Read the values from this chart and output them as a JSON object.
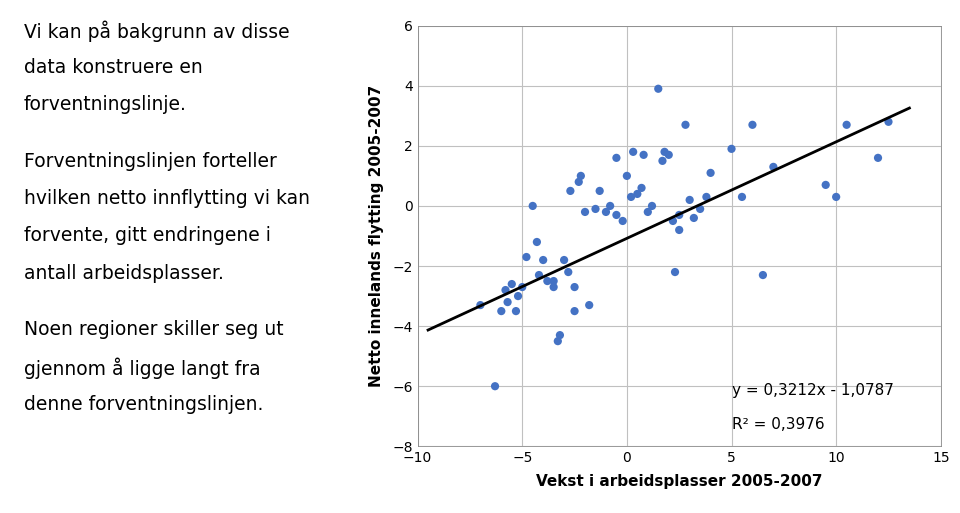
{
  "scatter_x": [
    -7.0,
    -6.3,
    -6.0,
    -5.8,
    -5.7,
    -5.5,
    -5.3,
    -5.2,
    -5.0,
    -4.8,
    -4.5,
    -4.3,
    -4.2,
    -4.0,
    -3.8,
    -3.5,
    -3.5,
    -3.3,
    -3.2,
    -3.0,
    -2.8,
    -2.7,
    -2.5,
    -2.5,
    -2.3,
    -2.2,
    -2.0,
    -1.8,
    -1.5,
    -1.3,
    -1.0,
    -0.8,
    -0.5,
    -0.5,
    -0.2,
    0.0,
    0.2,
    0.3,
    0.5,
    0.7,
    0.8,
    1.0,
    1.2,
    1.5,
    1.7,
    1.8,
    2.0,
    2.2,
    2.3,
    2.5,
    2.5,
    2.8,
    3.0,
    3.2,
    3.5,
    3.8,
    4.0,
    5.0,
    5.5,
    6.0,
    6.5,
    7.0,
    9.5,
    10.0,
    10.5,
    12.0,
    12.5
  ],
  "scatter_y": [
    -3.3,
    -6.0,
    -3.5,
    -2.8,
    -3.2,
    -2.6,
    -3.5,
    -3.0,
    -2.7,
    -1.7,
    0.0,
    -1.2,
    -2.3,
    -1.8,
    -2.5,
    -2.7,
    -2.5,
    -4.5,
    -4.3,
    -1.8,
    -2.2,
    0.5,
    -2.7,
    -3.5,
    0.8,
    1.0,
    -0.2,
    -3.3,
    -0.1,
    0.5,
    -0.2,
    0.0,
    -0.3,
    1.6,
    -0.5,
    1.0,
    0.3,
    1.8,
    0.4,
    0.6,
    1.7,
    -0.2,
    0.0,
    3.9,
    1.5,
    1.8,
    1.7,
    -0.5,
    -2.2,
    -0.8,
    -0.3,
    2.7,
    0.2,
    -0.4,
    -0.1,
    0.3,
    1.1,
    1.9,
    0.3,
    2.7,
    -2.3,
    1.3,
    0.7,
    0.3,
    2.7,
    1.6,
    2.8
  ],
  "slope": 0.3212,
  "intercept": -1.0787,
  "xlim": [
    -10,
    15
  ],
  "ylim": [
    -8,
    6
  ],
  "xticks": [
    -10,
    -5,
    0,
    5,
    10,
    15
  ],
  "yticks": [
    -8,
    -6,
    -4,
    -2,
    0,
    2,
    4,
    6
  ],
  "xlabel": "Vekst i arbeidsplasser 2005-2007",
  "ylabel": "Netto innelands flytting 2005-2007",
  "dot_color": "#4472C4",
  "line_color": "#000000",
  "equation_text": "y = 0,3212x - 1,0787",
  "r2_text": "R² = 0,3976",
  "background_color": "#ffffff",
  "plot_bg_color": "#ffffff",
  "grid_color": "#c0c0c0",
  "text_lines": [
    "Vi kan på bakgrunn av disse",
    "data konstruere en",
    "forventningslinje.",
    "",
    "Forventningslinjen forteller",
    "hvilken netto innflytting vi kan",
    "forvente, gitt endringene i",
    "antall arbeidsplasser.",
    "",
    "Noen regioner skiller seg ut",
    "gjennom å ligge langt fra",
    "denne forventningslinjen."
  ],
  "dot_size": 35,
  "line_x_start": -9.5,
  "line_x_end": 13.5,
  "text_fontsize": 13.5,
  "axis_label_fontsize": 11,
  "tick_fontsize": 10,
  "eq_fontsize": 11
}
